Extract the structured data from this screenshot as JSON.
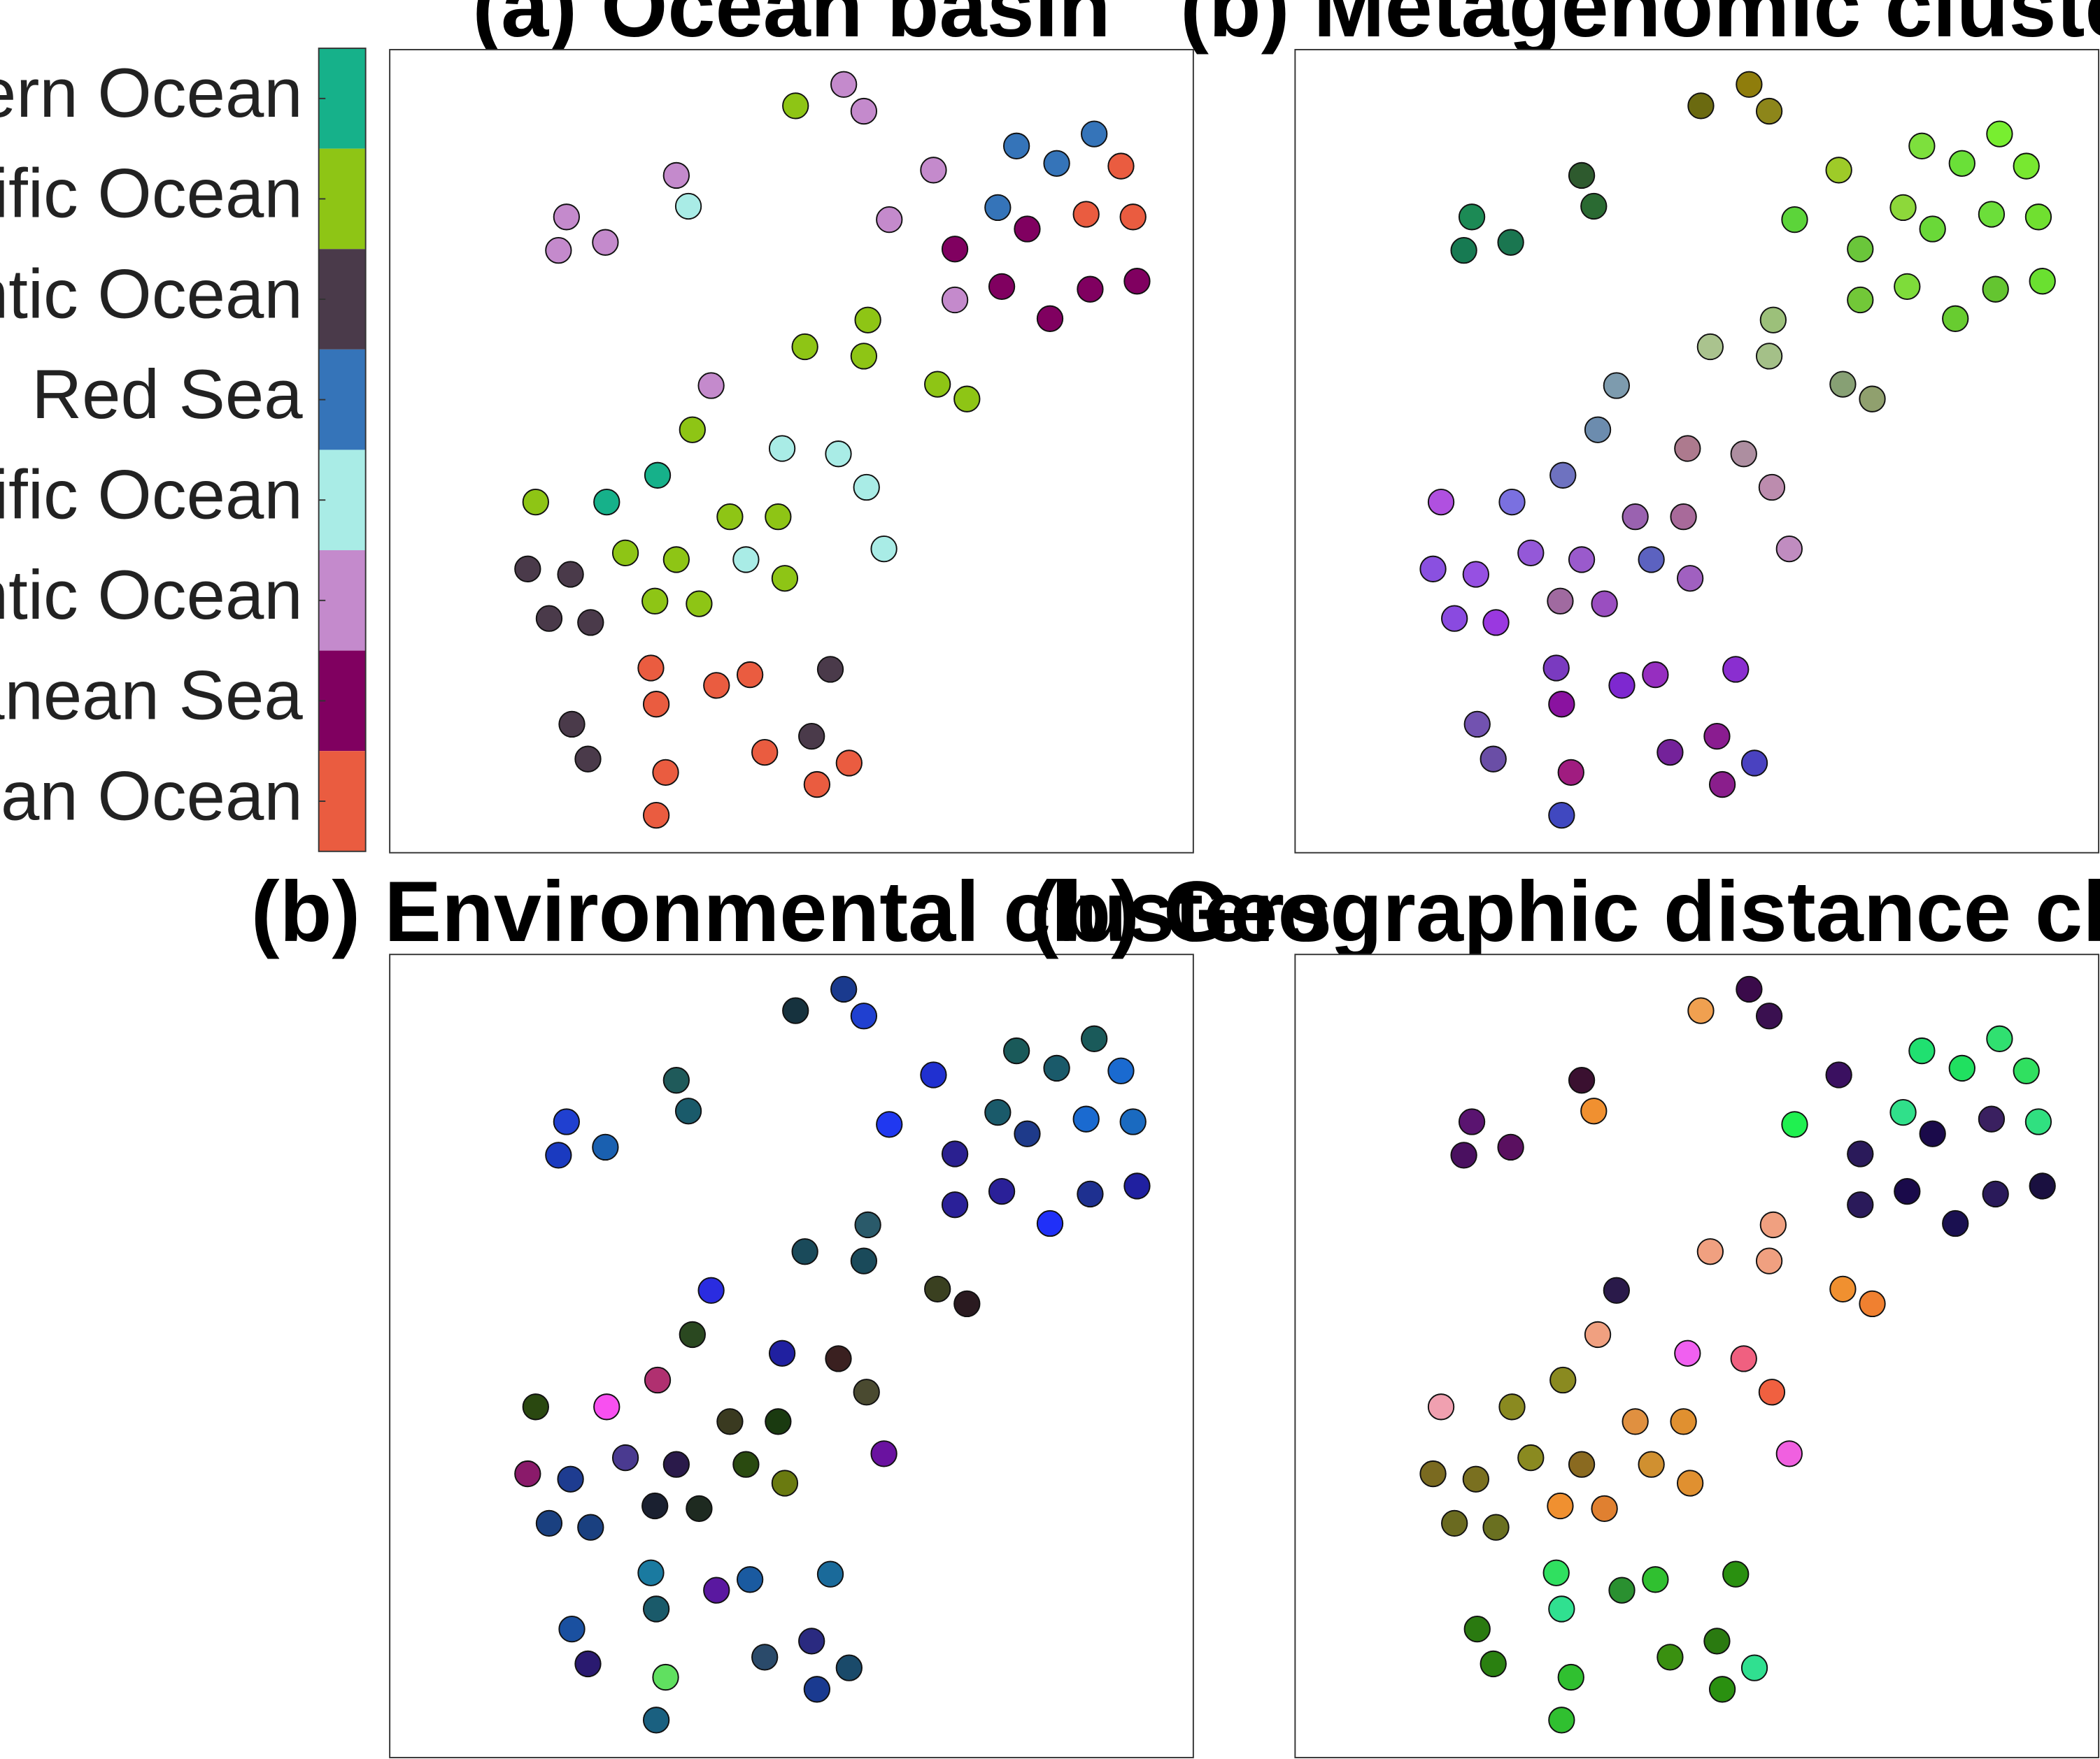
{
  "colorbar": {
    "entries": [
      {
        "label": "Southern Ocean",
        "color": "#16b18a"
      },
      {
        "label": "South Pacific Ocean",
        "color": "#8ec515"
      },
      {
        "label": "North Atlantic Ocean",
        "color": "#4a3a4a"
      },
      {
        "label": "Red Sea",
        "color": "#3574b9"
      },
      {
        "label": "North Pacific Ocean",
        "color": "#a9ece6"
      },
      {
        "label": "South Atlantic Ocean",
        "color": "#c48acc"
      },
      {
        "label": "Mediterranean Sea",
        "color": "#800060"
      },
      {
        "label": "Indian Ocean",
        "color": "#ea5c40"
      }
    ]
  },
  "points": [
    [
      594,
      79
    ],
    [
      630,
      63
    ],
    [
      645,
      83
    ],
    [
      505,
      131
    ],
    [
      514,
      154
    ],
    [
      423,
      162
    ],
    [
      452,
      181
    ],
    [
      417,
      187
    ],
    [
      697,
      127
    ],
    [
      759,
      109
    ],
    [
      789,
      122
    ],
    [
      817,
      100
    ],
    [
      837,
      124
    ],
    [
      664,
      164
    ],
    [
      745,
      155
    ],
    [
      767,
      171
    ],
    [
      811,
      160
    ],
    [
      846,
      162
    ],
    [
      713,
      186
    ],
    [
      748,
      214
    ],
    [
      713,
      224
    ],
    [
      784,
      238
    ],
    [
      814,
      216
    ],
    [
      849,
      210
    ],
    [
      648,
      239
    ],
    [
      601,
      259
    ],
    [
      645,
      266
    ],
    [
      531,
      288
    ],
    [
      700,
      287
    ],
    [
      722,
      298
    ],
    [
      517,
      321
    ],
    [
      584,
      335
    ],
    [
      626,
      339
    ],
    [
      491,
      355
    ],
    [
      647,
      364
    ],
    [
      400,
      375
    ],
    [
      453,
      375
    ],
    [
      545,
      386
    ],
    [
      581,
      386
    ],
    [
      467,
      413
    ],
    [
      505,
      418
    ],
    [
      557,
      418
    ],
    [
      660,
      410
    ],
    [
      394,
      425
    ],
    [
      426,
      429
    ],
    [
      586,
      432
    ],
    [
      489,
      449
    ],
    [
      522,
      451
    ],
    [
      410,
      462
    ],
    [
      441,
      465
    ],
    [
      486,
      499
    ],
    [
      560,
      504
    ],
    [
      620,
      500
    ],
    [
      535,
      512
    ],
    [
      490,
      526
    ],
    [
      427,
      541
    ],
    [
      606,
      550
    ],
    [
      439,
      567
    ],
    [
      571,
      562
    ],
    [
      634,
      570
    ],
    [
      497,
      577
    ],
    [
      610,
      586
    ],
    [
      490,
      609
    ]
  ],
  "chart_data": [
    {
      "type": "scatter",
      "title": "(a) Ocean basin",
      "colors": [
        "#8ec515",
        "#c48acc",
        "#c48acc",
        "#c48acc",
        "#a9ece6",
        "#c48acc",
        "#c48acc",
        "#c48acc",
        "#c48acc",
        "#3574b9",
        "#3574b9",
        "#3574b9",
        "#ea5c40",
        "#c48acc",
        "#3574b9",
        "#800060",
        "#ea5c40",
        "#ea5c40",
        "#800060",
        "#800060",
        "#c48acc",
        "#800060",
        "#800060",
        "#800060",
        "#8ec515",
        "#8ec515",
        "#8ec515",
        "#c48acc",
        "#8ec515",
        "#8ec515",
        "#8ec515",
        "#a9ece6",
        "#a9ece6",
        "#16b18a",
        "#a9ece6",
        "#8ec515",
        "#16b18a",
        "#8ec515",
        "#8ec515",
        "#8ec515",
        "#8ec515",
        "#a9ece6",
        "#a9ece6",
        "#4a3a4a",
        "#4a3a4a",
        "#8ec515",
        "#8ec515",
        "#8ec515",
        "#4a3a4a",
        "#4a3a4a",
        "#ea5c40",
        "#ea5c40",
        "#4a3a4a",
        "#ea5c40",
        "#ea5c40",
        "#4a3a4a",
        "#4a3a4a",
        "#4a3a4a",
        "#ea5c40",
        "#ea5c40",
        "#ea5c40",
        "#ea5c40",
        "#ea5c40"
      ]
    },
    {
      "type": "scatter",
      "title": "(b) Metagenomic clusters",
      "colors": [
        "#6b6a10",
        "#8f7d0c",
        "#8d861a",
        "#2e5a2e",
        "#2a6a32",
        "#1c8a55",
        "#1a7650",
        "#177a52",
        "#9ecb28",
        "#7de03d",
        "#6ae038",
        "#78ee30",
        "#78e830",
        "#5cd43a",
        "#8dd83a",
        "#6ad838",
        "#6cde3a",
        "#70e030",
        "#6ac63a",
        "#7edc3a",
        "#72c838",
        "#68cc30",
        "#64c530",
        "#6ae030",
        "#9cc07a",
        "#aac38e",
        "#a4c088",
        "#7d9bae",
        "#87a074",
        "#90a06e",
        "#6c8cae",
        "#ad7a8e",
        "#ad8ea0",
        "#6e72c0",
        "#bc8cae",
        "#b050e0",
        "#7a70e0",
        "#9a62b0",
        "#a86a9a",
        "#9458d8",
        "#9a5acc",
        "#5c62c0",
        "#c08cc0",
        "#8a50e0",
        "#9650e2",
        "#a060c0",
        "#a06aa0",
        "#9a4ec0",
        "#8a4ae0",
        "#9a38e0",
        "#7a3ac0",
        "#962ec0",
        "#8a2ed0",
        "#7e28d0",
        "#8a12a0",
        "#7252b0",
        "#8a1c90",
        "#6a4ea6",
        "#74229a",
        "#4a42c0",
        "#a01c80",
        "#8a1e8c",
        "#4048c0"
      ]
    },
    {
      "type": "scatter",
      "title": "(b) Environmental clusters",
      "colors": [
        "#16323e",
        "#1a3a8e",
        "#2040d0",
        "#1f5a5a",
        "#1a5a6a",
        "#2040d0",
        "#1a60b0",
        "#1a3ac0",
        "#2030d0",
        "#1a5a5a",
        "#1a5a6a",
        "#1a5a5a",
        "#1a6ad0",
        "#2038f0",
        "#1a5a6a",
        "#1e3a8a",
        "#1a6ad0",
        "#1a6ac0",
        "#2a2090",
        "#2a2098",
        "#2a2098",
        "#2030f8",
        "#1e3090",
        "#2020a0",
        "#2a5a6a",
        "#1a4a5a",
        "#1a4a5a",
        "#2a2ce0",
        "#3a4020",
        "#2a1a20",
        "#2a4820",
        "#2020a0",
        "#3a2020",
        "#b03070",
        "#4a4a30",
        "#2a4810",
        "#f850f0",
        "#3a3a20",
        "#1a3a10",
        "#4a3a90",
        "#2a1a4a",
        "#2a4a10",
        "#6a12a0",
        "#8a1a6a",
        "#1e3c90",
        "#6a7a10",
        "#1a2030",
        "#1e2a20",
        "#1a4080",
        "#1a4080",
        "#1a7aa0",
        "#1a5aa0",
        "#1a6a9a",
        "#5a18a0",
        "#1a5a6a",
        "#1a50a0",
        "#2a2a80",
        "#2a1a70",
        "#2a4a6a",
        "#1a4a6a",
        "#60e060",
        "#1a3a90",
        "#1a6080"
      ]
    },
    {
      "type": "scatter",
      "title": "(b) Geographic distance clusters",
      "colors": [
        "#f0a050",
        "#3a0a4a",
        "#3a1050",
        "#3a1030",
        "#f09030",
        "#5a1470",
        "#5a1060",
        "#4a1060",
        "#3a1060",
        "#20e070",
        "#20e060",
        "#30e070",
        "#30e060",
        "#20f050",
        "#30e08a",
        "#1a0a4a",
        "#3a2060",
        "#30e080",
        "#2a1a5a",
        "#1a0a4a",
        "#2a1a5a",
        "#1a1050",
        "#2a1a5a",
        "#1a1040",
        "#f0a080",
        "#f0a080",
        "#f0a080",
        "#2a1a4a",
        "#f09030",
        "#f08030",
        "#f0a080",
        "#f060f0",
        "#f06080",
        "#8a8a20",
        "#f06040",
        "#f0a0b0",
        "#8a8a20",
        "#e09040",
        "#e09030",
        "#8a8a20",
        "#8a6a20",
        "#d09030",
        "#f060e0",
        "#7a6a20",
        "#7a7020",
        "#e09030",
        "#f09030",
        "#e08030",
        "#6a6a20",
        "#6a7020",
        "#30e060",
        "#30c030",
        "#2a9010",
        "#2a9030",
        "#30e090",
        "#2a7a10",
        "#2a7a10",
        "#2a8010",
        "#3a9010",
        "#30e090",
        "#30c030",
        "#2a9010",
        "#30c030"
      ]
    }
  ]
}
